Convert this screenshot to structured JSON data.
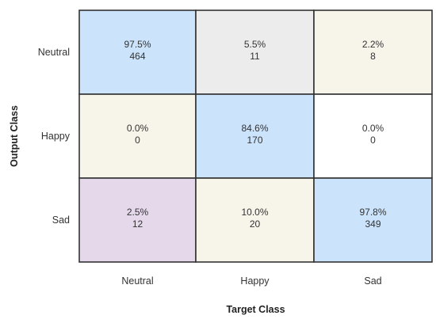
{
  "chart_data": {
    "type": "heatmap",
    "title": "",
    "xlabel": "Target Class",
    "ylabel": "Output Class",
    "x_categories": [
      "Neutral",
      "Happy",
      "Sad"
    ],
    "y_categories": [
      "Neutral",
      "Happy",
      "Sad"
    ],
    "cells": [
      [
        {
          "percent": "97.5%",
          "count": "464",
          "color": "#cce4fb"
        },
        {
          "percent": "5.5%",
          "count": "11",
          "color": "#ececec"
        },
        {
          "percent": "2.2%",
          "count": "8",
          "color": "#f7f4ea"
        }
      ],
      [
        {
          "percent": "0.0%",
          "count": "0",
          "color": "#f7f4ea"
        },
        {
          "percent": "84.6%",
          "count": "170",
          "color": "#cce4fb"
        },
        {
          "percent": "0.0%",
          "count": "0",
          "color": "#ffffff"
        }
      ],
      [
        {
          "percent": "2.5%",
          "count": "12",
          "color": "#e4d8ea"
        },
        {
          "percent": "10.0%",
          "count": "20",
          "color": "#f7f4ea"
        },
        {
          "percent": "97.8%",
          "count": "349",
          "color": "#cce4fb"
        }
      ]
    ]
  }
}
